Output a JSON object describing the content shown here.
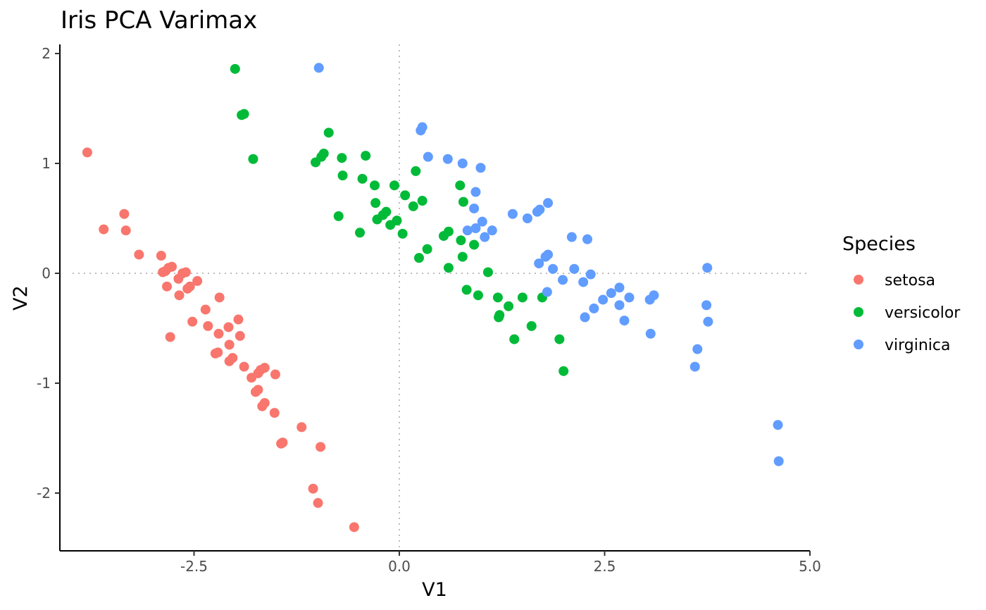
{
  "chart_data": {
    "type": "scatter",
    "title": "Iris PCA Varimax",
    "xlabel": "V1",
    "ylabel": "V2",
    "xlim": [
      -4.3,
      5.0
    ],
    "ylim": [
      -2.5,
      2.05
    ],
    "x_ticks": [
      -2.5,
      0.0,
      2.5,
      5.0
    ],
    "x_tick_labels": [
      "-2.5",
      "0.0",
      "2.5",
      "5.0"
    ],
    "y_ticks": [
      -2,
      -1,
      0,
      1,
      2
    ],
    "y_tick_labels": [
      "-2",
      "-1",
      "0",
      "1",
      "2"
    ],
    "reference_lines": {
      "x": 0,
      "y": 0,
      "style": "dotted"
    },
    "grid": false,
    "legend": {
      "title": "Species",
      "position": "right"
    },
    "series": [
      {
        "name": "setosa",
        "color": "#F8766D",
        "points": [
          [
            -3.8,
            1.1
          ],
          [
            -3.6,
            0.4
          ],
          [
            -3.35,
            0.54
          ],
          [
            -3.33,
            0.39
          ],
          [
            -3.17,
            0.17
          ],
          [
            -2.9,
            0.16
          ],
          [
            -2.88,
            0.01
          ],
          [
            -2.85,
            0.02
          ],
          [
            -2.81,
            0.05
          ],
          [
            -2.77,
            0.06
          ],
          [
            -2.83,
            -0.12
          ],
          [
            -2.69,
            -0.05
          ],
          [
            -2.68,
            -0.2
          ],
          [
            -2.64,
            0.0
          ],
          [
            -2.6,
            0.01
          ],
          [
            -2.58,
            -0.14
          ],
          [
            -2.55,
            -0.12
          ],
          [
            -2.46,
            -0.07
          ],
          [
            -2.52,
            -0.44
          ],
          [
            -2.79,
            -0.58
          ],
          [
            -2.36,
            -0.33
          ],
          [
            -2.33,
            -0.48
          ],
          [
            -2.24,
            -0.73
          ],
          [
            -2.2,
            -0.55
          ],
          [
            -2.21,
            -0.72
          ],
          [
            -2.19,
            -0.22
          ],
          [
            -2.08,
            -0.49
          ],
          [
            -2.07,
            -0.65
          ],
          [
            -2.07,
            -0.8
          ],
          [
            -2.03,
            -0.77
          ],
          [
            -1.96,
            -0.42
          ],
          [
            -1.94,
            -0.57
          ],
          [
            -1.89,
            -0.85
          ],
          [
            -1.8,
            -0.95
          ],
          [
            -1.75,
            -1.08
          ],
          [
            -1.72,
            -1.06
          ],
          [
            -1.72,
            -0.91
          ],
          [
            -1.69,
            -0.88
          ],
          [
            -1.67,
            -1.21
          ],
          [
            -1.64,
            -0.86
          ],
          [
            -1.64,
            -1.18
          ],
          [
            -1.52,
            -1.27
          ],
          [
            -1.51,
            -0.92
          ],
          [
            -1.44,
            -1.55
          ],
          [
            -1.42,
            -1.54
          ],
          [
            -1.19,
            -1.4
          ],
          [
            -1.05,
            -1.96
          ],
          [
            -0.99,
            -2.09
          ],
          [
            -0.96,
            -1.58
          ],
          [
            -0.55,
            -2.31
          ]
        ]
      },
      {
        "name": "versicolor",
        "color": "#00BA38",
        "points": [
          [
            -2.0,
            1.86
          ],
          [
            -1.92,
            1.44
          ],
          [
            -1.89,
            1.45
          ],
          [
            -1.78,
            1.04
          ],
          [
            -1.02,
            1.01
          ],
          [
            -0.95,
            1.06
          ],
          [
            -0.92,
            1.09
          ],
          [
            -0.86,
            1.28
          ],
          [
            -0.74,
            0.52
          ],
          [
            -0.7,
            1.05
          ],
          [
            -0.69,
            0.89
          ],
          [
            -0.48,
            0.37
          ],
          [
            -0.45,
            0.86
          ],
          [
            -0.41,
            1.07
          ],
          [
            -0.3,
            0.8
          ],
          [
            -0.29,
            0.64
          ],
          [
            -0.27,
            0.49
          ],
          [
            -0.2,
            0.53
          ],
          [
            -0.16,
            0.56
          ],
          [
            -0.11,
            0.44
          ],
          [
            -0.06,
            0.8
          ],
          [
            -0.03,
            0.48
          ],
          [
            0.04,
            0.36
          ],
          [
            0.07,
            0.71
          ],
          [
            0.17,
            0.61
          ],
          [
            0.2,
            0.93
          ],
          [
            0.24,
            0.14
          ],
          [
            0.28,
            0.66
          ],
          [
            0.34,
            0.22
          ],
          [
            0.54,
            0.34
          ],
          [
            0.6,
            0.38
          ],
          [
            0.6,
            0.05
          ],
          [
            0.74,
            0.8
          ],
          [
            0.75,
            0.3
          ],
          [
            0.77,
            0.15
          ],
          [
            0.78,
            0.65
          ],
          [
            0.82,
            -0.15
          ],
          [
            0.91,
            0.26
          ],
          [
            0.96,
            -0.2
          ],
          [
            1.08,
            0.01
          ],
          [
            1.2,
            -0.22
          ],
          [
            1.21,
            -0.4
          ],
          [
            1.22,
            -0.38
          ],
          [
            1.33,
            -0.3
          ],
          [
            1.4,
            -0.6
          ],
          [
            1.5,
            -0.22
          ],
          [
            1.61,
            -0.48
          ],
          [
            1.74,
            -0.22
          ],
          [
            1.95,
            -0.6
          ],
          [
            2.0,
            -0.89
          ]
        ]
      },
      {
        "name": "virginica",
        "color": "#619CFF",
        "points": [
          [
            -0.98,
            1.87
          ],
          [
            0.26,
            1.3
          ],
          [
            0.28,
            1.33
          ],
          [
            0.35,
            1.06
          ],
          [
            0.59,
            1.04
          ],
          [
            0.77,
            1.0
          ],
          [
            0.83,
            0.39
          ],
          [
            0.91,
            0.59
          ],
          [
            0.93,
            0.74
          ],
          [
            0.93,
            0.41
          ],
          [
            0.99,
            0.96
          ],
          [
            1.01,
            0.47
          ],
          [
            1.04,
            0.33
          ],
          [
            1.13,
            0.39
          ],
          [
            1.38,
            0.54
          ],
          [
            1.56,
            0.5
          ],
          [
            1.68,
            0.56
          ],
          [
            1.71,
            0.58
          ],
          [
            1.7,
            0.09
          ],
          [
            1.78,
            0.15
          ],
          [
            1.81,
            0.17
          ],
          [
            1.8,
            -0.17
          ],
          [
            1.81,
            0.64
          ],
          [
            1.87,
            0.04
          ],
          [
            1.99,
            -0.06
          ],
          [
            2.1,
            0.33
          ],
          [
            2.13,
            0.04
          ],
          [
            2.24,
            -0.08
          ],
          [
            2.26,
            -0.4
          ],
          [
            2.29,
            0.31
          ],
          [
            2.33,
            -0.01
          ],
          [
            2.37,
            -0.32
          ],
          [
            2.48,
            -0.24
          ],
          [
            2.58,
            -0.18
          ],
          [
            2.68,
            -0.29
          ],
          [
            2.68,
            -0.13
          ],
          [
            2.74,
            -0.43
          ],
          [
            2.8,
            -0.22
          ],
          [
            3.05,
            -0.24
          ],
          [
            3.06,
            -0.55
          ],
          [
            3.1,
            -0.2
          ],
          [
            3.6,
            -0.85
          ],
          [
            3.63,
            -0.69
          ],
          [
            3.74,
            -0.29
          ],
          [
            3.75,
            0.05
          ],
          [
            3.76,
            -0.44
          ],
          [
            4.61,
            -1.38
          ],
          [
            4.62,
            -1.71
          ]
        ]
      }
    ]
  }
}
